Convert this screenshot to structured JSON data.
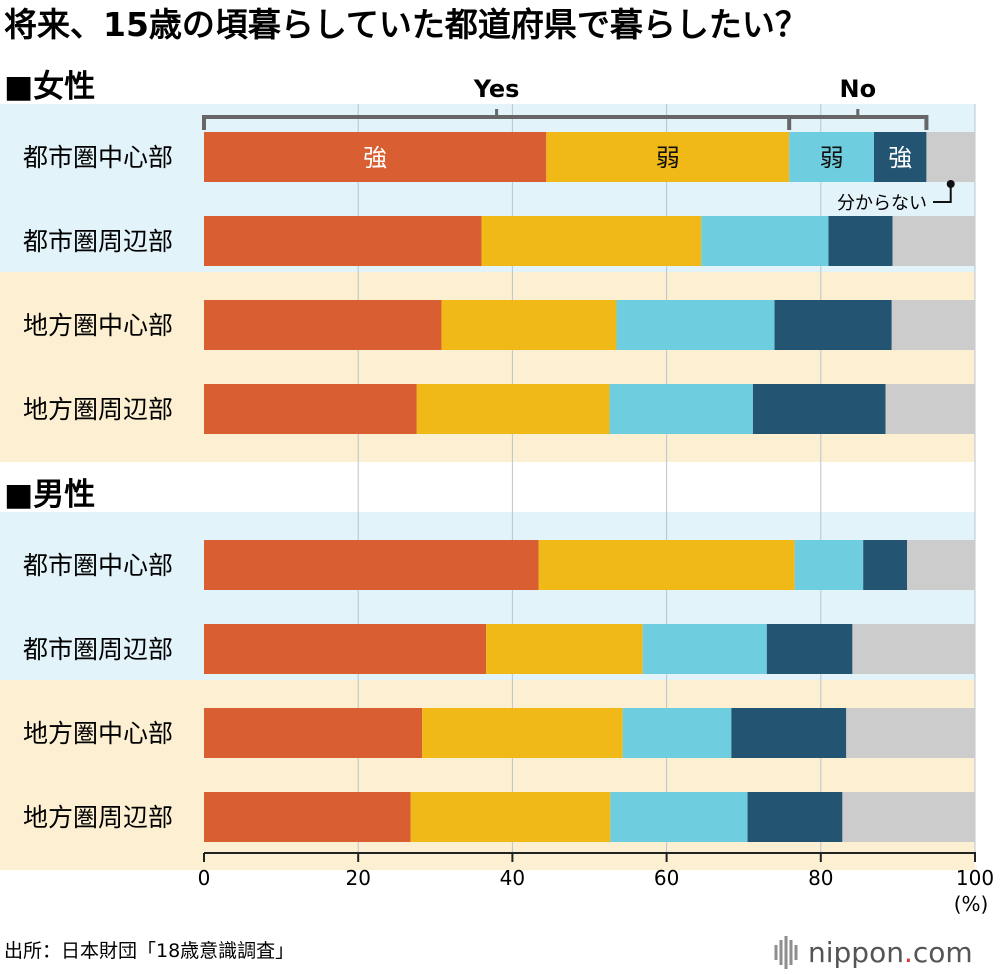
{
  "title": "将来、15歳の頃暮らしていた都道府県で暮らしたい？",
  "source": "出所：日本財団「18歳意識調査」",
  "brand": {
    "name": "nippon",
    "dot": ".",
    "suffix": "com"
  },
  "colors": {
    "yes_strong": "#D95F32",
    "yes_weak": "#F0B917",
    "no_weak": "#6FCDE0",
    "no_strong": "#235472",
    "unknown": "#CCCCCC",
    "urban_band": "#E2F3F9",
    "rural_band": "#FDF0D2",
    "grid": "#B8C4CC",
    "axis": "#222222",
    "bracket": "#666666"
  },
  "legend": {
    "yes": "Yes",
    "no": "No",
    "strong": "強",
    "weak": "弱",
    "unknown": "分からない"
  },
  "chart_data": {
    "type": "bar",
    "orientation": "horizontal",
    "stacked": true,
    "xlim": [
      0,
      100
    ],
    "xticks": [
      "0",
      "20",
      "40",
      "60",
      "80",
      "100"
    ],
    "xunit": "(%)",
    "grid": true,
    "stack_order": [
      "Yes 強",
      "Yes 弱",
      "No 弱",
      "No 強",
      "分からない"
    ],
    "groups": [
      {
        "name": "■女性",
        "rows": [
          {
            "label": "都市圏中心部",
            "region": "urban",
            "values": [
              44.4,
              31.5,
              11.0,
              6.8,
              6.3
            ]
          },
          {
            "label": "都市圏周辺部",
            "region": "urban",
            "values": [
              36.0,
              28.5,
              16.5,
              8.3,
              10.7
            ]
          },
          {
            "label": "地方圏中心部",
            "region": "rural",
            "values": [
              30.8,
              22.7,
              20.5,
              15.2,
              10.8
            ]
          },
          {
            "label": "地方圏周辺部",
            "region": "rural",
            "values": [
              27.6,
              25.0,
              18.6,
              17.2,
              11.6
            ]
          }
        ]
      },
      {
        "name": "■男性",
        "rows": [
          {
            "label": "都市圏中心部",
            "region": "urban",
            "values": [
              43.4,
              33.2,
              8.9,
              5.7,
              8.8
            ]
          },
          {
            "label": "都市圏周辺部",
            "region": "urban",
            "values": [
              36.6,
              20.3,
              16.1,
              11.1,
              15.9
            ]
          },
          {
            "label": "地方圏中心部",
            "region": "rural",
            "values": [
              28.3,
              26.0,
              14.1,
              14.9,
              16.7
            ]
          },
          {
            "label": "地方圏周辺部",
            "region": "rural",
            "values": [
              26.8,
              25.9,
              17.8,
              12.3,
              17.2
            ]
          }
        ]
      }
    ]
  }
}
